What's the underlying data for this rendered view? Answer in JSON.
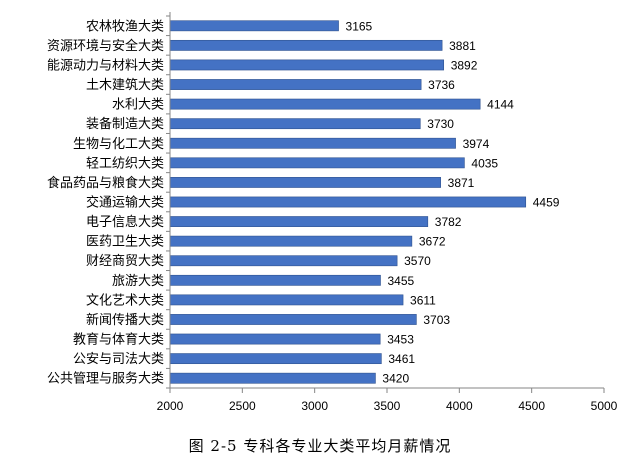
{
  "caption": "图 2-5  专科各专业大类平均月薪情况",
  "chart_data": {
    "type": "bar",
    "orientation": "horizontal",
    "title": "",
    "xlabel": "",
    "ylabel": "",
    "xlim": [
      2000,
      5000
    ],
    "x_ticks": [
      2000,
      2500,
      3000,
      3500,
      4000,
      4500,
      5000
    ],
    "grid": false,
    "legend": "none",
    "bar_color": "#4472C4",
    "bar_edge_color": "#2F528F",
    "categories": [
      "农林牧渔大类",
      "资源环境与安全大类",
      "能源动力与材料大类",
      "土木建筑大类",
      "水利大类",
      "装备制造大类",
      "生物与化工大类",
      "轻工纺织大类",
      "食品药品与粮食大类",
      "交通运输大类",
      "电子信息大类",
      "医药卫生大类",
      "财经商贸大类",
      "旅游大类",
      "文化艺术大类",
      "新闻传播大类",
      "教育与体育大类",
      "公安与司法大类",
      "公共管理与服务大类"
    ],
    "values": [
      3165,
      3881,
      3892,
      3736,
      4144,
      3730,
      3974,
      4035,
      3871,
      4459,
      3782,
      3672,
      3570,
      3455,
      3611,
      3703,
      3453,
      3461,
      3420
    ]
  }
}
